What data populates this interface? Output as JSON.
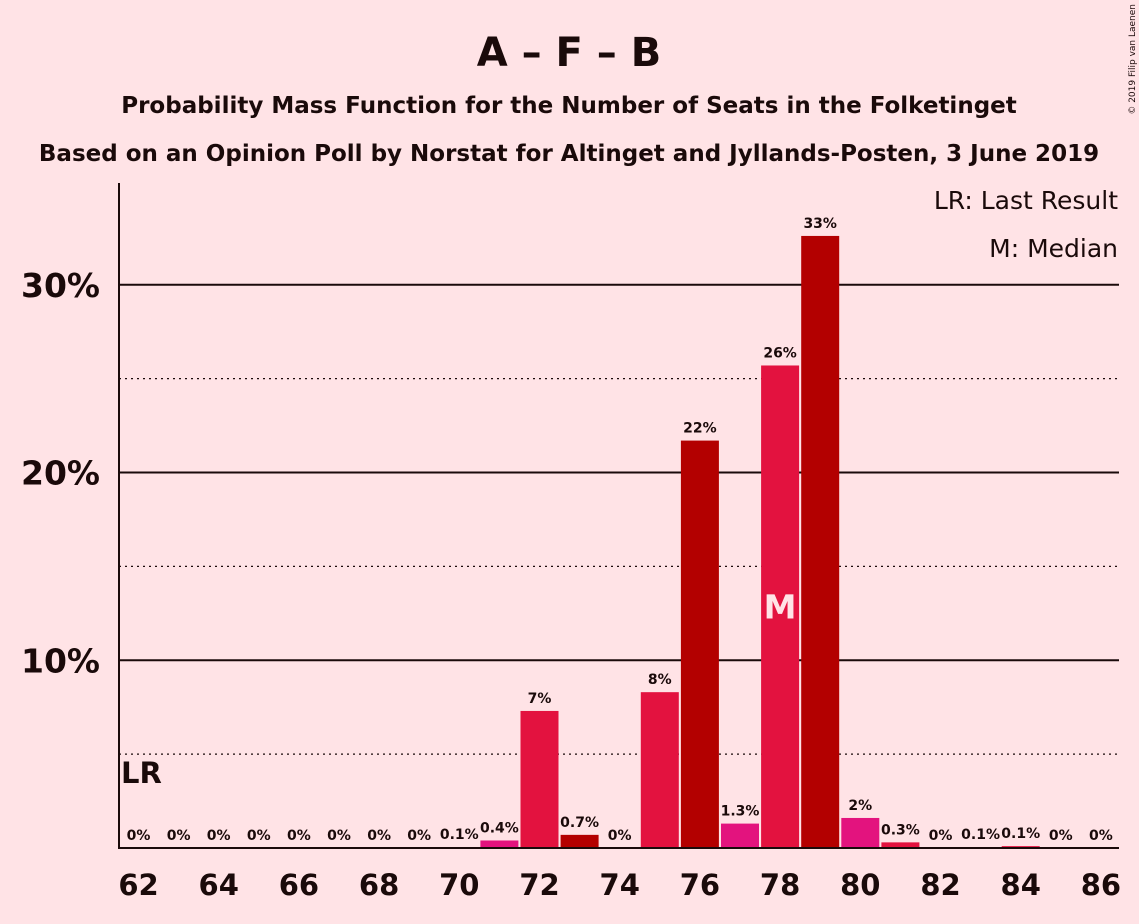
{
  "chart_data": {
    "type": "bar",
    "title": "A – F – B",
    "subtitle": "Probability Mass Function for the Number of Seats in the Folketinget",
    "subtitle2": "Based on an Opinion Poll by Norstat for Altinget and Jyllands-Posten, 3 June 2019",
    "copyright": "© 2019 Filip van Laenen",
    "legend": {
      "lr": "LR: Last Result",
      "m": "M: Median",
      "placement": "top-right"
    },
    "lr_label": "LR",
    "median_label": "M",
    "last_result": 62,
    "median": 78,
    "x": [
      62,
      63,
      64,
      65,
      66,
      67,
      68,
      69,
      70,
      71,
      72,
      73,
      74,
      75,
      76,
      77,
      78,
      79,
      80,
      81,
      82,
      83,
      84,
      85,
      86
    ],
    "values": [
      0,
      0,
      0,
      0,
      0,
      0,
      0,
      0,
      0.05,
      0.4,
      7.3,
      0.7,
      0,
      8.3,
      21.7,
      1.3,
      25.7,
      32.6,
      1.6,
      0.3,
      0,
      0.05,
      0.1,
      0,
      0
    ],
    "labels": [
      "0%",
      "0%",
      "0%",
      "0%",
      "0%",
      "0%",
      "0%",
      "0%",
      "0.1%",
      "0.4%",
      "7%",
      "0.7%",
      "0%",
      "8%",
      "22%",
      "1.3%",
      "26%",
      "33%",
      "2%",
      "0.3%",
      "0%",
      "0.1%",
      "0.1%",
      "0%",
      "0%"
    ],
    "xticks": [
      62,
      64,
      66,
      68,
      70,
      72,
      74,
      76,
      78,
      80,
      82,
      84,
      86
    ],
    "yticks": [
      {
        "value": 10,
        "label": "10%"
      },
      {
        "value": 20,
        "label": "20%"
      },
      {
        "value": 30,
        "label": "30%"
      }
    ],
    "ygrid_minor": [
      5,
      15,
      25
    ],
    "ylim": [
      0,
      35.5
    ],
    "colors": {
      "background": "#FFE3E6",
      "dark_red": "#B30000",
      "crimson": "#E3123F",
      "magenta": "#E3137E",
      "text": "#1a0a0a"
    },
    "bar_colors": [
      "crimson",
      "dark_red",
      "magenta",
      "crimson",
      "dark_red",
      "magenta",
      "crimson",
      "dark_red",
      "magenta",
      "magenta",
      "crimson",
      "dark_red",
      "magenta",
      "crimson",
      "dark_red",
      "magenta",
      "crimson",
      "dark_red",
      "magenta",
      "crimson",
      "dark_red",
      "magenta",
      "crimson",
      "dark_red",
      "magenta"
    ]
  }
}
